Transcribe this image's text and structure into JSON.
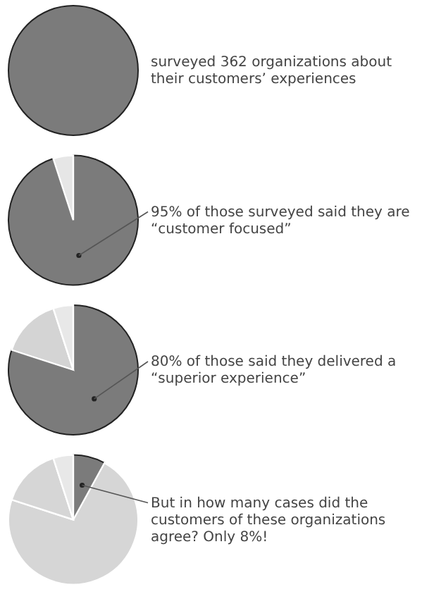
{
  "chart_data": [
    {
      "type": "pie",
      "categories": [
        null
      ],
      "values": [
        100
      ],
      "colors": [
        "#7b7b7b"
      ],
      "annotations": [
        "surveyed 362 organizations about their customers’ experiences"
      ]
    },
    {
      "type": "pie",
      "categories": [
        null,
        null
      ],
      "values": [
        95,
        5
      ],
      "colors": [
        "#7b7b7b",
        "#e6e6e6"
      ],
      "annotations": [
        "95% of those surveyed said they are “customer focused”"
      ]
    },
    {
      "type": "pie",
      "categories": [
        null,
        null,
        null
      ],
      "values": [
        80,
        15,
        5
      ],
      "colors": [
        "#7b7b7b",
        "#d4d4d4",
        "#e8e8e8"
      ],
      "annotations": [
        "80% of those said they delivered a “superior experience”"
      ]
    },
    {
      "type": "pie",
      "categories": [
        null,
        null,
        null,
        null
      ],
      "values": [
        8,
        72,
        15,
        5
      ],
      "colors": [
        "#7b7b7b",
        "#d6d6d6",
        "#d6d6d6",
        "#e8e8e8"
      ],
      "annotations": [
        "But in how many cases did the customers of these organizations agree? Only 8%!"
      ]
    }
  ]
}
